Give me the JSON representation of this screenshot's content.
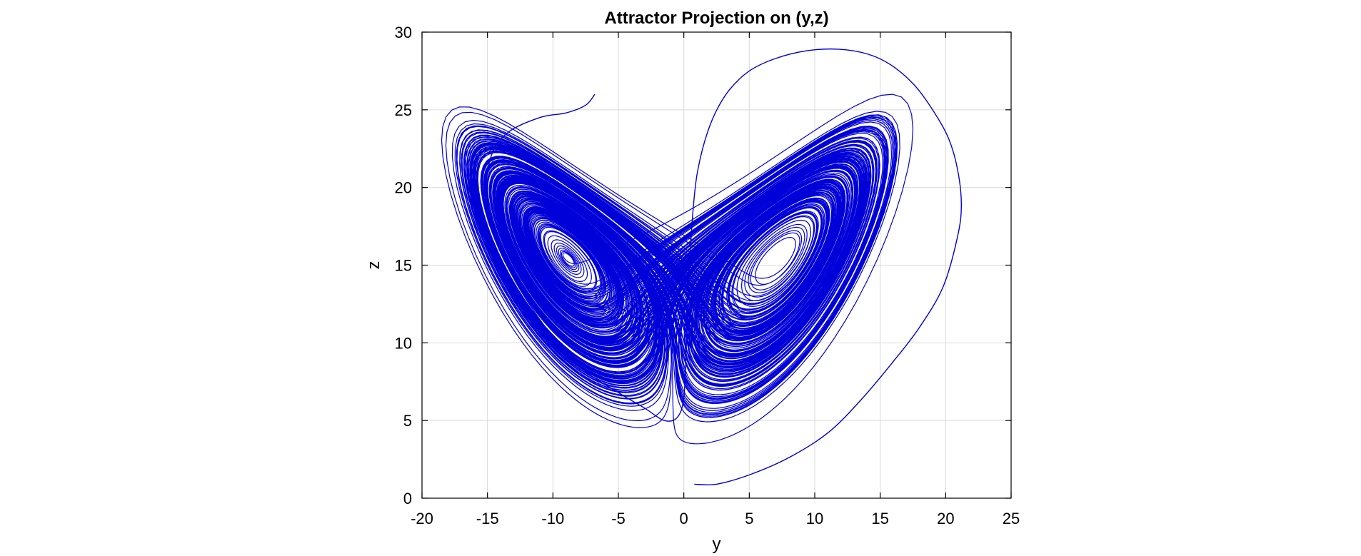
{
  "chart_data": {
    "type": "line",
    "title": "Attractor Projection on (y,z)",
    "xlabel": "y",
    "ylabel": "z",
    "xlim": [
      -20,
      25
    ],
    "ylim": [
      0,
      30
    ],
    "xticks": [
      -20,
      -15,
      -10,
      -5,
      0,
      5,
      10,
      15,
      20,
      25
    ],
    "yticks": [
      0,
      5,
      10,
      15,
      20,
      25,
      30
    ],
    "grid": true,
    "series": [
      {
        "color": "#0000d8",
        "x": [
          0.8,
          2.5,
          5.0,
          8.0,
          11.0,
          13.5,
          16.0,
          18.0,
          19.8,
          20.9,
          21.2,
          20.9,
          20.2,
          19.0,
          17.6,
          15.8,
          14.0,
          11.8,
          9.4,
          7.0,
          5.0,
          3.5,
          2.4,
          1.6,
          1.0,
          0.7,
          0.5,
          0.3,
          0.2,
          0.0,
          -0.5,
          -1.5,
          -3.0,
          -5.0,
          -8.0,
          -11.0,
          -13.5,
          -15.0,
          -14.8,
          -13.5,
          -11.0,
          -9.0,
          -7.5,
          -6.8
        ],
        "y": [
          0.9,
          0.9,
          1.5,
          2.6,
          4.2,
          6.3,
          8.8,
          11.0,
          13.6,
          16.8,
          18.9,
          21.2,
          23.2,
          25.0,
          26.6,
          27.9,
          28.6,
          28.9,
          28.8,
          28.3,
          27.5,
          26.3,
          24.8,
          23.0,
          20.8,
          18.5,
          16.0,
          13.0,
          10.0,
          6.5,
          5.2,
          5.0,
          5.8,
          6.8,
          8.5,
          11.5,
          15.0,
          19.0,
          21.8,
          23.5,
          24.5,
          24.8,
          25.3,
          26.0
        ],
        "spiral_left_center": [
          -6.5,
          12.8
        ],
        "spiral_right_center": [
          6.2,
          12.2
        ],
        "envelope_y": [
          -18.5,
          17.5
        ],
        "envelope_z": [
          3.5,
          26.0
        ]
      }
    ]
  }
}
